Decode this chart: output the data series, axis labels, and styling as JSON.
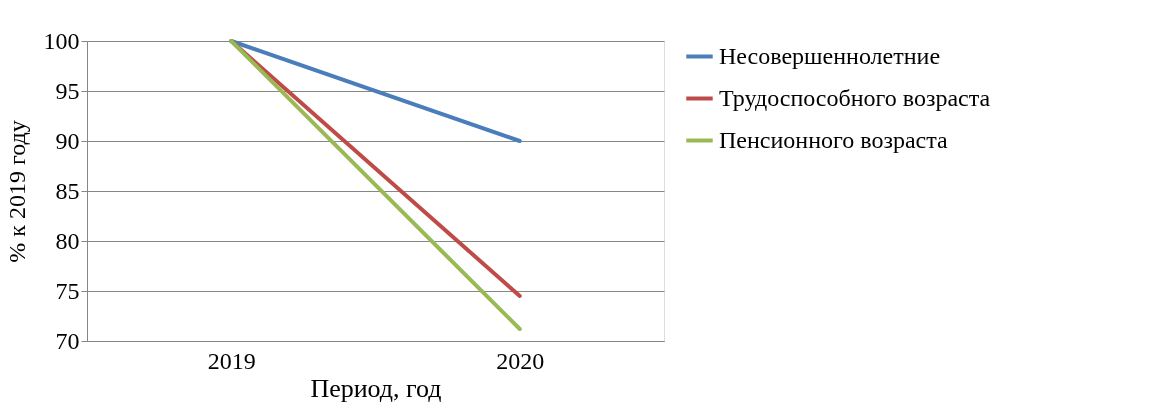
{
  "chart_data": {
    "type": "line",
    "xlabel": "Период, год",
    "ylabel": "% к 2019 году",
    "categories": [
      "2019",
      "2020"
    ],
    "series": [
      {
        "name": "Несовершеннолетние",
        "color": "#4a7ebb",
        "values": [
          100,
          90
        ]
      },
      {
        "name": "Трудоспособного возраста",
        "color": "#be4b48",
        "values": [
          100,
          74.5
        ]
      },
      {
        "name": "Пенсионного возраста",
        "color": "#98b954",
        "values": [
          100,
          71.2
        ]
      }
    ],
    "ylim": [
      70,
      100
    ],
    "yticks": [
      70,
      75,
      80,
      85,
      90,
      95,
      100
    ],
    "grid": "y",
    "legend": "right",
    "marker": "none",
    "line_style": "solid"
  }
}
